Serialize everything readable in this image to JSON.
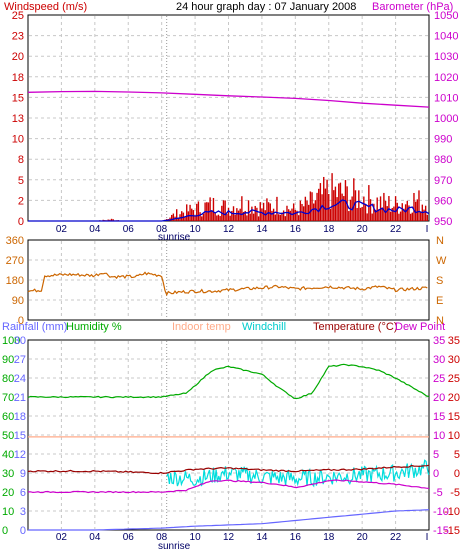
{
  "title": "24 hour graph day : 07 January 2008",
  "colors": {
    "wind": "#cc0000",
    "wind_avg": "#0000cc",
    "baro": "#cc00cc",
    "dir": "#cc6600",
    "rain": "#6666ff",
    "humidity": "#00aa00",
    "indoor": "#ffaa88",
    "windchill": "#00dddd",
    "temp": "#990000",
    "dewpoint": "#cc00cc",
    "grid": "#c8c8c8",
    "axis_green": "#00aa00",
    "axis_blue": "#6666ff",
    "axis_red": "#cc0000",
    "axis_navy": "#000066"
  },
  "chart_data": [
    {
      "type": "line",
      "name": "wind-baro",
      "left_label": "Windspeed (m/s)",
      "right_label": "Barometer (hPa)",
      "left_ylim": [
        0,
        25
      ],
      "right_ylim": [
        950,
        1050
      ],
      "left_ticks": [
        "0",
        "2",
        "5",
        "8",
        "10",
        "13",
        "15",
        "18",
        "20",
        "23",
        "25"
      ],
      "right_ticks": [
        "950",
        "960",
        "970",
        "980",
        "990",
        "1000",
        "1010",
        "1020",
        "1030",
        "1040",
        "1050"
      ],
      "x_ticks": [
        "02",
        "04",
        "06",
        "08",
        "10",
        "12",
        "14",
        "16",
        "18",
        "20",
        "22"
      ],
      "sunrise_label": "sunrise",
      "sunrise_hour": 8.3,
      "series": [
        {
          "name": "Windspeed",
          "x": [
            0,
            1,
            2,
            3,
            4,
            5,
            6,
            7,
            8,
            9,
            10,
            11,
            12,
            13,
            14,
            15,
            16,
            17,
            18,
            19,
            20,
            21,
            22,
            23,
            24
          ],
          "values": [
            0,
            0,
            0,
            0,
            0,
            0.3,
            0,
            0,
            0,
            1.5,
            2.2,
            3.0,
            2.5,
            3.5,
            2.5,
            3.0,
            2.0,
            3.5,
            5.5,
            5.0,
            4.5,
            3.5,
            3.0,
            4.0,
            3.2
          ]
        },
        {
          "name": "Windspeed average",
          "x": [
            0,
            1,
            2,
            3,
            4,
            5,
            6,
            7,
            8,
            9,
            10,
            11,
            12,
            13,
            14,
            15,
            16,
            17,
            18,
            19,
            20,
            21,
            22,
            23,
            24
          ],
          "values": [
            0,
            0,
            0,
            0,
            0,
            0,
            0,
            0,
            0,
            0.3,
            0.8,
            1.0,
            1.0,
            1.1,
            1.0,
            1.1,
            0.9,
            1.4,
            2.0,
            2.0,
            1.8,
            1.5,
            1.3,
            1.5,
            1.2
          ]
        },
        {
          "name": "Barometer",
          "x": [
            0,
            2,
            4,
            6,
            8,
            10,
            12,
            14,
            16,
            18,
            20,
            22,
            24
          ],
          "values": [
            1012.5,
            1012.8,
            1012.9,
            1012.6,
            1012.2,
            1011.5,
            1010.8,
            1010.2,
            1009.5,
            1008.5,
            1007.2,
            1006.2,
            1005.3
          ]
        }
      ]
    },
    {
      "type": "line",
      "name": "wind-direction",
      "left_ylim": [
        0,
        360
      ],
      "left_ticks": [
        "0",
        "90",
        "180",
        "270",
        "360"
      ],
      "right_ticks": [
        "N",
        "E",
        "S",
        "W",
        "N"
      ],
      "series": [
        {
          "name": "Wind direction",
          "x": [
            0,
            0.8,
            1.0,
            2.5,
            4.0,
            4.5,
            5.0,
            6.5,
            7.0,
            8.0,
            8.25,
            9,
            10,
            11,
            12,
            13,
            14,
            15,
            16,
            17,
            18,
            19,
            20,
            21,
            22,
            23,
            24
          ],
          "values": [
            130,
            135,
            200,
            205,
            200,
            215,
            195,
            195,
            210,
            200,
            120,
            125,
            130,
            130,
            135,
            140,
            145,
            150,
            140,
            145,
            150,
            145,
            140,
            150,
            135,
            140,
            145
          ]
        }
      ]
    },
    {
      "type": "line",
      "name": "temperature-humidity",
      "legend": [
        "Rainfall (mm)",
        "Humidity %",
        "Indoor temp",
        "Windchill",
        "Temperature (°C)",
        "Dew Point"
      ],
      "rain_ticks": [
        "0",
        "3",
        "6",
        "9",
        "12",
        "15",
        "18",
        "21",
        "24",
        "27",
        "30"
      ],
      "humidity_ticks": [
        "0",
        "10",
        "20",
        "30",
        "40",
        "50",
        "60",
        "70",
        "80",
        "90",
        "100"
      ],
      "temp_ticks": [
        "-15",
        "-10",
        "-5",
        "0",
        "5",
        "10",
        "15",
        "20",
        "25",
        "30",
        "35"
      ],
      "temp_ylim": [
        -15,
        35
      ],
      "series": [
        {
          "name": "Humidity %",
          "x": [
            0,
            4,
            8,
            9.5,
            10.5,
            11,
            12,
            14,
            15,
            16,
            17,
            18,
            19,
            20,
            21,
            22,
            24
          ],
          "values": [
            70,
            70,
            70,
            72,
            80,
            84,
            86,
            82,
            75,
            69,
            72,
            86,
            87,
            86,
            84,
            80,
            70
          ]
        },
        {
          "name": "Indoor temp",
          "x": [
            0,
            24
          ],
          "values": [
            9.5,
            9.5
          ]
        },
        {
          "name": "Temperature (°C)",
          "x": [
            0,
            4,
            8,
            10,
            12,
            14,
            16,
            18,
            20,
            22,
            24
          ],
          "values": [
            0.5,
            0.5,
            0.0,
            1.0,
            1.3,
            0.8,
            0.5,
            0.8,
            1.0,
            1.6,
            2.0
          ]
        },
        {
          "name": "Windchill",
          "x": [
            8.3,
            10,
            12,
            14,
            16,
            18,
            20,
            22,
            24
          ],
          "values": [
            -1.0,
            -1.5,
            0.0,
            -1.0,
            -1.5,
            -1.0,
            -0.5,
            0.0,
            1.5
          ]
        },
        {
          "name": "Dew Point",
          "x": [
            0,
            4,
            8,
            9.5,
            11,
            12,
            14,
            15,
            16,
            17,
            18,
            19,
            20,
            22,
            24
          ],
          "values": [
            -5.0,
            -5.0,
            -5.0,
            -4.5,
            -2.0,
            -2.0,
            -2.5,
            -3.0,
            -3.8,
            -3.0,
            -2.0,
            -2.0,
            -2.3,
            -3.0,
            -4.0
          ]
        },
        {
          "name": "Rainfall (mm)",
          "x": [
            0,
            4,
            8,
            10,
            12,
            14,
            16,
            18,
            20,
            22,
            24
          ],
          "values": [
            0,
            0,
            0.3,
            0.6,
            0.8,
            1.0,
            1.5,
            2.0,
            2.5,
            3.0,
            3.2
          ]
        }
      ]
    }
  ]
}
